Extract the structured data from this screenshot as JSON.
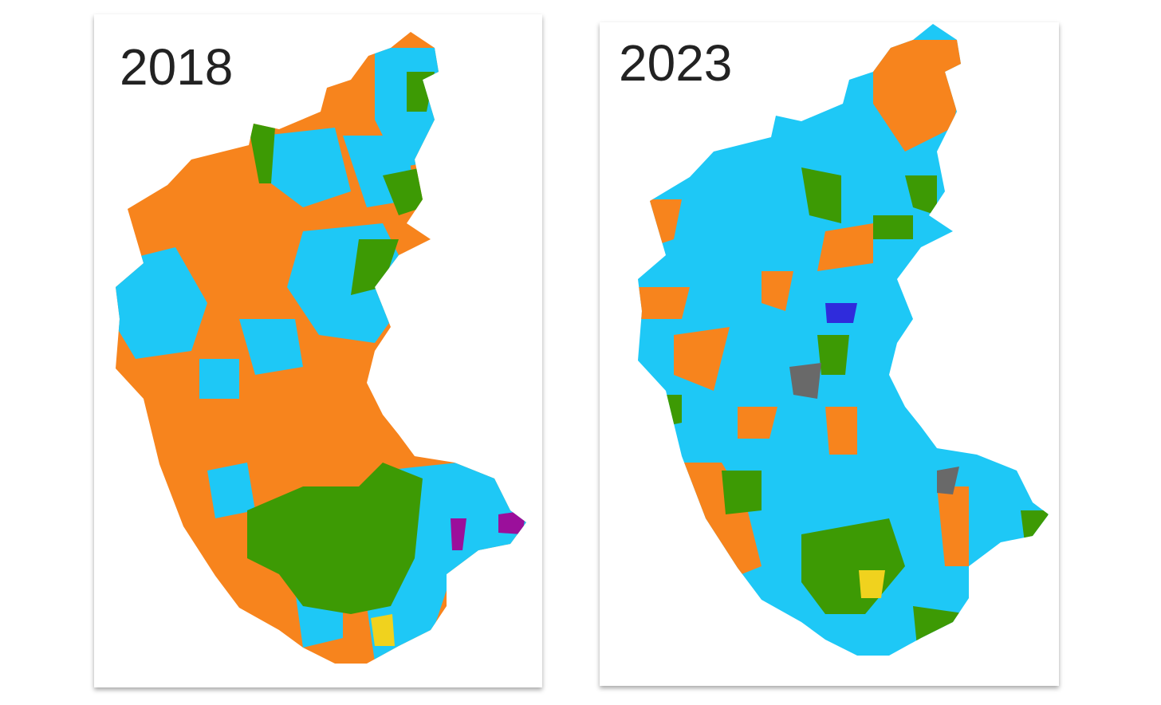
{
  "panels": [
    {
      "year": "2018"
    },
    {
      "year": "2023"
    }
  ]
}
